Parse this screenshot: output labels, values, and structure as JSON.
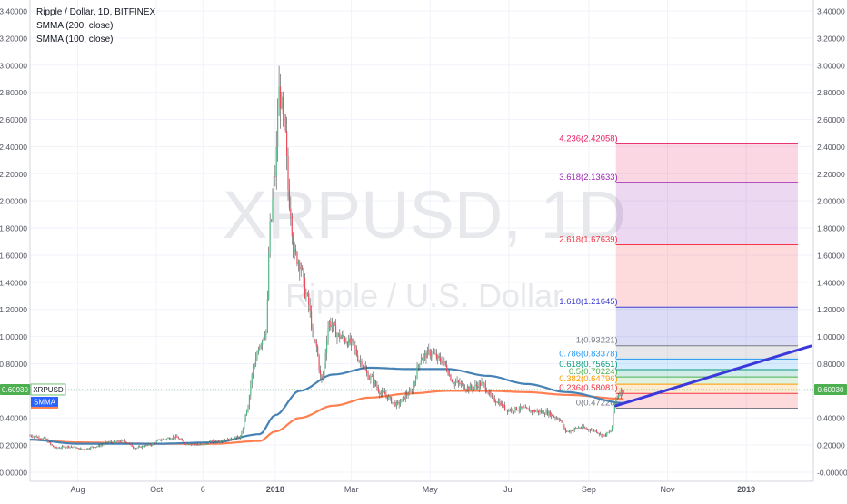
{
  "chart_data": {
    "type": "candlestick",
    "symbol": "XRPUSD",
    "title": "Ripple / Dollar, 1D, BITFINEX",
    "watermark": {
      "ticker": "XRPUSD, 1D",
      "name": "Ripple / U.S. Dollar"
    },
    "indicators": [
      "SMMA (200, close)",
      "SMMA (100, close)"
    ],
    "ylim": [
      0.0,
      3.4
    ],
    "y_ticks": [
      "-0.00000",
      "0.20000",
      "0.40000",
      "0.60000",
      "0.80000",
      "1.00000",
      "1.20000",
      "1.40000",
      "1.60000",
      "1.80000",
      "2.00000",
      "2.20000",
      "2.40000",
      "2.60000",
      "2.80000",
      "3.00000",
      "3.20000",
      "3.40000"
    ],
    "x_ticks": [
      "Aug",
      "Oct",
      "6",
      "2018",
      "Mar",
      "May",
      "Jul",
      "Sep",
      "Nov",
      "2019"
    ],
    "x_tick_dates": [
      "2017-08-01",
      "2017-10-01",
      "2017-11-06",
      "2018-01-01",
      "2018-03-01",
      "2018-05-01",
      "2018-07-01",
      "2018-09-01",
      "2018-11-01",
      "2019-01-01"
    ],
    "x_start": "2017-06-25",
    "x_end": "2019-02-22",
    "last_price": "0.60930",
    "last_price_value": 0.6093,
    "price_series": [
      [
        "2017-06-25",
        0.27
      ],
      [
        "2017-07-05",
        0.25
      ],
      [
        "2017-07-15",
        0.18
      ],
      [
        "2017-07-25",
        0.19
      ],
      [
        "2017-08-05",
        0.17
      ],
      [
        "2017-08-15",
        0.19
      ],
      [
        "2017-08-25",
        0.22
      ],
      [
        "2017-09-05",
        0.23
      ],
      [
        "2017-09-15",
        0.18
      ],
      [
        "2017-09-25",
        0.2
      ],
      [
        "2017-10-05",
        0.24
      ],
      [
        "2017-10-15",
        0.26
      ],
      [
        "2017-10-25",
        0.21
      ],
      [
        "2017-11-05",
        0.2
      ],
      [
        "2017-11-15",
        0.23
      ],
      [
        "2017-11-25",
        0.24
      ],
      [
        "2017-12-05",
        0.26
      ],
      [
        "2017-12-10",
        0.45
      ],
      [
        "2017-12-15",
        0.75
      ],
      [
        "2017-12-20",
        0.95
      ],
      [
        "2017-12-25",
        1.05
      ],
      [
        "2017-12-28",
        1.8
      ],
      [
        "2018-01-01",
        2.2
      ],
      [
        "2018-01-04",
        2.8
      ],
      [
        "2018-01-08",
        2.55
      ],
      [
        "2018-01-12",
        2.0
      ],
      [
        "2018-01-16",
        1.6
      ],
      [
        "2018-01-20",
        1.55
      ],
      [
        "2018-01-25",
        1.3
      ],
      [
        "2018-02-01",
        0.95
      ],
      [
        "2018-02-06",
        0.68
      ],
      [
        "2018-02-12",
        1.1
      ],
      [
        "2018-02-20",
        1.0
      ],
      [
        "2018-03-01",
        0.95
      ],
      [
        "2018-03-08",
        0.82
      ],
      [
        "2018-03-15",
        0.7
      ],
      [
        "2018-03-25",
        0.58
      ],
      [
        "2018-04-05",
        0.5
      ],
      [
        "2018-04-15",
        0.58
      ],
      [
        "2018-04-25",
        0.85
      ],
      [
        "2018-05-01",
        0.88
      ],
      [
        "2018-05-10",
        0.82
      ],
      [
        "2018-05-20",
        0.66
      ],
      [
        "2018-06-01",
        0.62
      ],
      [
        "2018-06-10",
        0.65
      ],
      [
        "2018-06-20",
        0.53
      ],
      [
        "2018-07-01",
        0.46
      ],
      [
        "2018-07-10",
        0.47
      ],
      [
        "2018-07-20",
        0.45
      ],
      [
        "2018-07-30",
        0.44
      ],
      [
        "2018-08-08",
        0.4
      ],
      [
        "2018-08-15",
        0.3
      ],
      [
        "2018-08-25",
        0.33
      ],
      [
        "2018-09-05",
        0.31
      ],
      [
        "2018-09-12",
        0.27
      ],
      [
        "2018-09-18",
        0.3
      ],
      [
        "2018-09-22",
        0.55
      ],
      [
        "2018-09-26",
        0.6
      ],
      [
        "2018-09-28",
        0.6093
      ]
    ],
    "smma_200": [
      [
        "2017-06-25",
        0.24
      ],
      [
        "2017-08-01",
        0.22
      ],
      [
        "2017-10-01",
        0.21
      ],
      [
        "2017-11-15",
        0.21
      ],
      [
        "2017-12-20",
        0.23
      ],
      [
        "2018-01-01",
        0.3
      ],
      [
        "2018-01-20",
        0.4
      ],
      [
        "2018-02-15",
        0.49
      ],
      [
        "2018-03-15",
        0.55
      ],
      [
        "2018-04-15",
        0.58
      ],
      [
        "2018-05-15",
        0.6
      ],
      [
        "2018-06-15",
        0.6
      ],
      [
        "2018-07-15",
        0.59
      ],
      [
        "2018-08-15",
        0.57
      ],
      [
        "2018-09-28",
        0.54
      ]
    ],
    "smma_100": [
      [
        "2017-06-25",
        0.24
      ],
      [
        "2017-08-01",
        0.21
      ],
      [
        "2017-10-01",
        0.21
      ],
      [
        "2017-11-15",
        0.22
      ],
      [
        "2017-12-20",
        0.28
      ],
      [
        "2018-01-01",
        0.42
      ],
      [
        "2018-01-20",
        0.6
      ],
      [
        "2018-02-15",
        0.72
      ],
      [
        "2018-03-15",
        0.77
      ],
      [
        "2018-04-15",
        0.76
      ],
      [
        "2018-05-15",
        0.76
      ],
      [
        "2018-06-15",
        0.71
      ],
      [
        "2018-07-15",
        0.65
      ],
      [
        "2018-08-15",
        0.59
      ],
      [
        "2018-09-28",
        0.51
      ]
    ],
    "fibonacci_extension": {
      "x_start": "2018-09-22",
      "x_end": "2019-02-10",
      "levels": [
        {
          "label": "0(0.47226)",
          "value": 0.47226,
          "color": "#787b86"
        },
        {
          "label": "0.236(0.58081)",
          "value": 0.58081,
          "color": "#f23645"
        },
        {
          "label": "0.382(0.64796)",
          "value": 0.64796,
          "color": "#ff9800"
        },
        {
          "label": "0.5(0.70224)",
          "value": 0.70224,
          "color": "#4caf50"
        },
        {
          "label": "0.618(0.75651)",
          "value": 0.75651,
          "color": "#089981"
        },
        {
          "label": "0.786(0.83378)",
          "value": 0.83378,
          "color": "#2196f3"
        },
        {
          "label": "1(0.93221)",
          "value": 0.93221,
          "color": "#787b86"
        },
        {
          "label": "1.618(1.21645)",
          "value": 1.21645,
          "color": "#3f3fcf"
        },
        {
          "label": "2.618(1.67639)",
          "value": 1.67639,
          "color": "#f23645"
        },
        {
          "label": "3.618(2.13633)",
          "value": 2.13633,
          "color": "#9c27b0"
        },
        {
          "label": "4.236(2.42058)",
          "value": 2.42058,
          "color": "#e91e63"
        }
      ]
    },
    "trendline": {
      "from": [
        "2018-09-22",
        0.49
      ],
      "to": [
        "2019-02-20",
        0.93
      ]
    },
    "colors": {
      "up": "#53b987",
      "down": "#eb4d5c",
      "smma_200": "#ff7f50",
      "smma_100": "#4682b4",
      "trendline": "#3a3adb",
      "price_tag": "#4caf50",
      "smma_tag": "#2962ff"
    },
    "smma_tag_label": "SMMA",
    "grid": true
  }
}
